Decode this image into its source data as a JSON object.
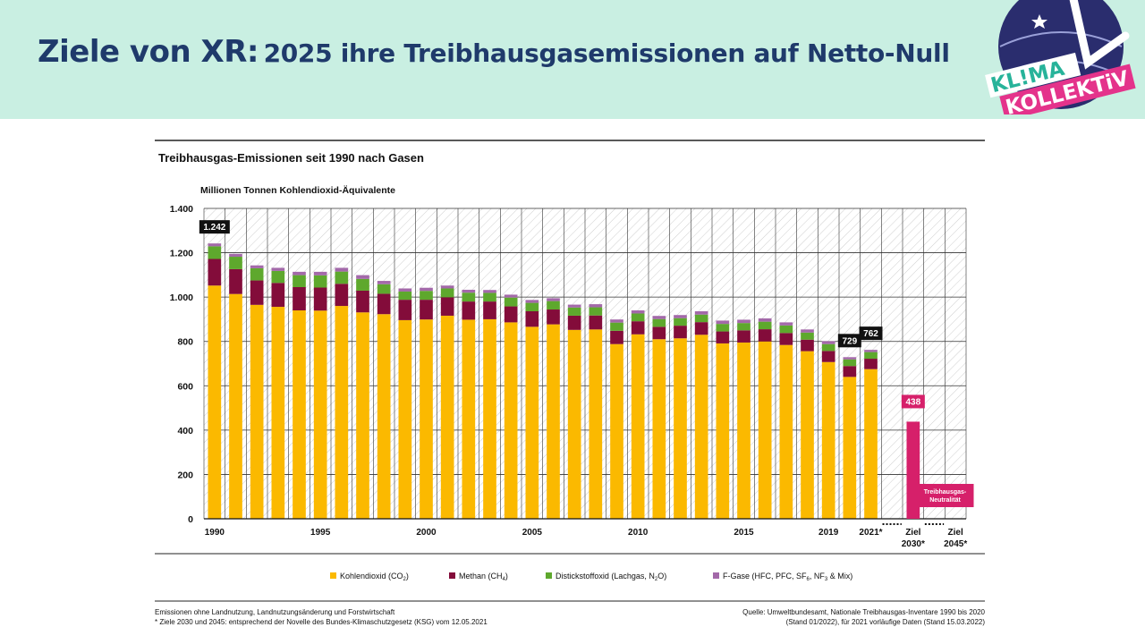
{
  "slide": {
    "title_bold": "Ziele von XR:",
    "title_rest": "2025 ihre Treibhausgasemissionen auf Netto-Null",
    "logo_line1": "KL!MA",
    "logo_line2": "KOLLEKTiV"
  },
  "colors": {
    "header_bg": "#c9efe2",
    "co2": "#fbb900",
    "ch4": "#830c3a",
    "n2o": "#5ea82d",
    "fgas": "#a369a9",
    "target": "#d6206a"
  },
  "chart_data": {
    "type": "bar",
    "stacked": true,
    "title": "Treibhausgas-Emissionen seit 1990 nach Gasen",
    "ylabel": "Millionen Tonnen Kohlendioxid-Äquivalente",
    "ylim": [
      0,
      1400
    ],
    "yticks": [
      0,
      200,
      400,
      600,
      800,
      1000,
      1200,
      1400
    ],
    "ytick_labels": [
      "0",
      "200",
      "400",
      "600",
      "800",
      "1.000",
      "1.200",
      "1.400"
    ],
    "grid": true,
    "years": [
      1990,
      1991,
      1992,
      1993,
      1994,
      1995,
      1996,
      1997,
      1998,
      1999,
      2000,
      2001,
      2002,
      2003,
      2004,
      2005,
      2006,
      2007,
      2008,
      2009,
      2010,
      2011,
      2012,
      2013,
      2014,
      2015,
      2016,
      2017,
      2018,
      2019,
      2020,
      2021
    ],
    "xtick_labels": [
      {
        "year": 1990,
        "label": "1990"
      },
      {
        "year": 1995,
        "label": "1995"
      },
      {
        "year": 2000,
        "label": "2000"
      },
      {
        "year": 2005,
        "label": "2005"
      },
      {
        "year": 2010,
        "label": "2010"
      },
      {
        "year": 2015,
        "label": "2015"
      },
      {
        "year": 2019,
        "label": "2019"
      },
      {
        "year": 2021,
        "label": "2021*"
      }
    ],
    "series": [
      {
        "name": "Kohlendioxid (CO2)",
        "legend_base": "Kohlendioxid (CO",
        "legend_sub": "2",
        "legend_end": ")",
        "color_key": "co2",
        "values": [
          1052,
          1014,
          965,
          956,
          940,
          939,
          960,
          931,
          923,
          896,
          899,
          916,
          898,
          900,
          886,
          866,
          877,
          852,
          854,
          788,
          832,
          810,
          814,
          830,
          791,
          795,
          800,
          784,
          756,
          707,
          640,
          675
        ]
      },
      {
        "name": "Methan (CH4)",
        "legend_base": "Methan (CH",
        "legend_sub": "4",
        "legend_end": ")",
        "color_key": "ch4",
        "values": [
          120,
          112,
          110,
          108,
          105,
          104,
          100,
          98,
          92,
          92,
          89,
          83,
          82,
          80,
          72,
          70,
          67,
          64,
          63,
          60,
          59,
          56,
          57,
          57,
          54,
          55,
          55,
          54,
          52,
          50,
          49,
          47
        ]
      },
      {
        "name": "Distickstoffoxid (Lachgas, N2O)",
        "legend_base": "Distickstoffoxid (Lachgas, N",
        "legend_sub": "2",
        "legend_end": "O)",
        "color_key": "n2o",
        "values": [
          57,
          56,
          55,
          54,
          54,
          55,
          55,
          53,
          43,
          37,
          40,
          40,
          40,
          39,
          40,
          38,
          38,
          37,
          37,
          37,
          35,
          35,
          34,
          34,
          34,
          33,
          34,
          34,
          32,
          31,
          30,
          30
        ]
      },
      {
        "name": "F-Gase (HFC, PFC, SF6, NF3 & Mix)",
        "legend_base": "F-Gase (HFC, PFC, SF",
        "legend_sub": "6",
        "legend_mid": ", NF",
        "legend_sub2": "3",
        "legend_end": " & Mix)",
        "color_key": "fgas",
        "values": [
          13,
          13,
          13,
          14,
          15,
          16,
          17,
          17,
          15,
          14,
          14,
          13,
          13,
          13,
          13,
          13,
          13,
          13,
          14,
          14,
          14,
          14,
          14,
          15,
          15,
          15,
          15,
          14,
          14,
          13,
          10,
          10
        ]
      }
    ],
    "value_labels": [
      {
        "year": 1990,
        "text": "1.242"
      },
      {
        "year": 2020,
        "text": "729"
      },
      {
        "year": 2021,
        "text": "762"
      }
    ],
    "targets": [
      {
        "label_line1": "Ziel",
        "label_line2": "2030*",
        "value": 438,
        "value_text": "438"
      },
      {
        "label_line1": "Ziel",
        "label_line2": "2045*",
        "value": 0,
        "box_line1": "Treibhausgas-",
        "box_line2": "Neutralität"
      }
    ]
  },
  "footnotes": {
    "left_line1": "Emissionen ohne Landnutzung, Landnutzungsänderung und Forstwirtschaft",
    "left_line2": "* Ziele 2030 und 2045: entsprechend der Novelle des Bundes-Klimaschutzgesetz (KSG) vom 12.05.2021",
    "right_line1": "Quelle: Umweltbundesamt, Nationale Treibhausgas-Inventare 1990 bis 2020",
    "right_line2": "(Stand 01/2022), für 2021 vorläufige Daten (Stand 15.03.2022)"
  }
}
